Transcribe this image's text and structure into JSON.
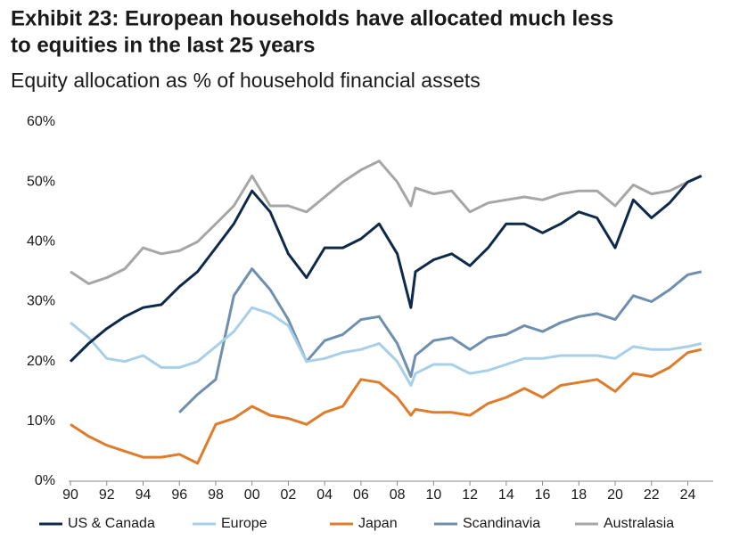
{
  "chart_data": {
    "type": "line",
    "title": [
      "Exhibit 23: European households have allocated much less",
      "to equities in the last 25 years"
    ],
    "subtitle": "Equity allocation as % of household financial assets",
    "x": [
      1990,
      1991,
      1992,
      1993,
      1994,
      1995,
      1996,
      1997,
      1998,
      1999,
      2000,
      2001,
      2002,
      2003,
      2004,
      2005,
      2006,
      2007,
      2008,
      2008.75,
      2009,
      2010,
      2011,
      2012,
      2013,
      2014,
      2015,
      2016,
      2017,
      2018,
      2019,
      2020,
      2021,
      2022,
      2023,
      2024,
      2024.75
    ],
    "series": [
      {
        "name": "US & Canada",
        "color": "#0d2a4a",
        "values": [
          20,
          23,
          25.5,
          27.5,
          29,
          29.5,
          32.5,
          35,
          39,
          43,
          48.5,
          45,
          38,
          34,
          39,
          39,
          40.5,
          43,
          38,
          29,
          35,
          37,
          38,
          36,
          39,
          43,
          43,
          41.5,
          43,
          45,
          44,
          39,
          47,
          44,
          46.5,
          50,
          51
        ]
      },
      {
        "name": "Europe",
        "color": "#a8cfe8",
        "values": [
          26.5,
          24,
          20.5,
          20,
          21,
          19,
          19,
          20,
          22.5,
          25,
          29,
          28,
          26,
          20,
          20.5,
          21.5,
          22,
          23,
          20,
          16,
          18,
          19.5,
          19.5,
          18,
          18.5,
          19.5,
          20.5,
          20.5,
          21,
          21,
          21,
          20.5,
          22.5,
          22,
          22,
          22.5,
          23
        ]
      },
      {
        "name": "Japan",
        "color": "#e07b2a",
        "values": [
          9.5,
          7.5,
          6,
          5,
          4,
          4,
          4.5,
          3,
          9.5,
          10.5,
          12.5,
          11,
          10.5,
          9.5,
          11.5,
          12.5,
          17,
          16.5,
          14,
          11,
          12,
          11.5,
          11.5,
          11,
          13,
          14,
          15.5,
          14,
          16,
          16.5,
          17,
          15,
          18,
          17.5,
          19,
          21.5,
          22
        ]
      },
      {
        "name": "Scandinavia",
        "color": "#6f8fae",
        "values": [
          null,
          null,
          null,
          null,
          null,
          null,
          11.5,
          14.5,
          17,
          31,
          35.5,
          32,
          27,
          20,
          23.5,
          24.5,
          27,
          27.5,
          23,
          17.5,
          21,
          23.5,
          24,
          22,
          24,
          24.5,
          26,
          25,
          26.5,
          27.5,
          28,
          27,
          31,
          30,
          32,
          34.5,
          35
        ]
      },
      {
        "name": "Australasia",
        "color": "#a6a6a6",
        "values": [
          35,
          33,
          34,
          35.5,
          39,
          38,
          38.5,
          40,
          43,
          46,
          51,
          46,
          46,
          45,
          47.5,
          50,
          52,
          53.5,
          50,
          46,
          49,
          48,
          48.5,
          45,
          46.5,
          47,
          47.5,
          47,
          48,
          48.5,
          48.5,
          46,
          49.5,
          48,
          48.5,
          50,
          51
        ]
      }
    ],
    "xlim": [
      1989.9,
      2025.4
    ],
    "xticks": [
      {
        "value": 1990,
        "label": "90"
      },
      {
        "value": 1992,
        "label": "92"
      },
      {
        "value": 1994,
        "label": "94"
      },
      {
        "value": 1996,
        "label": "96"
      },
      {
        "value": 1998,
        "label": "98"
      },
      {
        "value": 2000,
        "label": "00"
      },
      {
        "value": 2002,
        "label": "02"
      },
      {
        "value": 2004,
        "label": "04"
      },
      {
        "value": 2006,
        "label": "06"
      },
      {
        "value": 2008,
        "label": "08"
      },
      {
        "value": 2010,
        "label": "10"
      },
      {
        "value": 2012,
        "label": "12"
      },
      {
        "value": 2014,
        "label": "14"
      },
      {
        "value": 2016,
        "label": "16"
      },
      {
        "value": 2018,
        "label": "18"
      },
      {
        "value": 2020,
        "label": "20"
      },
      {
        "value": 2022,
        "label": "22"
      },
      {
        "value": 2024,
        "label": "24"
      }
    ],
    "ylim": [
      0,
      60
    ],
    "yticks": [
      {
        "value": 0,
        "label": "0%"
      },
      {
        "value": 10,
        "label": "10%"
      },
      {
        "value": 20,
        "label": "20%"
      },
      {
        "value": 30,
        "label": "30%"
      },
      {
        "value": 40,
        "label": "40%"
      },
      {
        "value": 50,
        "label": "50%"
      },
      {
        "value": 60,
        "label": "60%"
      }
    ],
    "grid": false,
    "legend": "bottom"
  }
}
